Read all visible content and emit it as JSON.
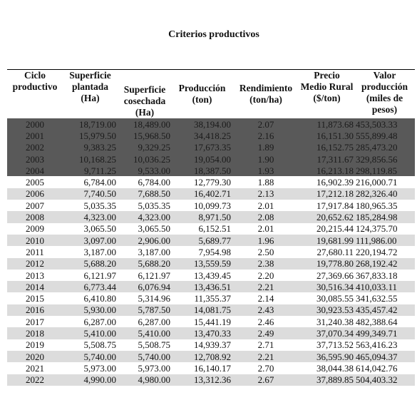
{
  "title": "Criterios productivos",
  "table": {
    "header": [
      "Ciclo productivo",
      "Superficie plantada (Ha)",
      "Superficie cosechada (Ha)",
      "Producción (ton)",
      "Rendimiento (ton/ha)",
      "Precio Medio Rural ($/ton)",
      "Valor producción (miles de pesos)"
    ],
    "rows": [
      [
        "2000",
        "18,719.00",
        "18,489.00",
        "38,194.00",
        "2.07",
        "11,873.68",
        "453,503.33"
      ],
      [
        "2001",
        "15,979.50",
        "15,968.50",
        "34,418.25",
        "2.16",
        "16,151.30",
        "555,899.48"
      ],
      [
        "2002",
        "9,383.25",
        "9,329.25",
        "17,673.35",
        "1.89",
        "16,152.75",
        "285,473.20"
      ],
      [
        "2003",
        "10,168.25",
        "10,036.25",
        "19,054.00",
        "1.90",
        "17,311.67",
        "329,856.56"
      ],
      [
        "2004",
        "9,711.25",
        "9,533.00",
        "18,387.50",
        "1.93",
        "16,213.18",
        "298,119.85"
      ],
      [
        "2005",
        "6,784.00",
        "6,784.00",
        "12,779.30",
        "1.88",
        "16,902.39",
        "216,000.71"
      ],
      [
        "2006",
        "7,740.50",
        "7,688.50",
        "16,402.71",
        "2.13",
        "17,212.18",
        "282,326.40"
      ],
      [
        "2007",
        "5,035.35",
        "5,035.35",
        "10,099.73",
        "2.01",
        "17,917.84",
        "180,965.35"
      ],
      [
        "2008",
        "4,323.00",
        "4,323.00",
        "8,971.50",
        "2.08",
        "20,652.62",
        "185,284.98"
      ],
      [
        "2009",
        "3,065.50",
        "3,065.50",
        "6,152.51",
        "2.01",
        "20,215.44",
        "124,375.70"
      ],
      [
        "2010",
        "3,097.00",
        "2,906.00",
        "5,689.77",
        "1.96",
        "19,681.99",
        "111,986.00"
      ],
      [
        "2011",
        "3,187.00",
        "3,187.00",
        "7,954.98",
        "2.50",
        "27,680.11",
        "220,194.72"
      ],
      [
        "2012",
        "5,688.20",
        "5,688.20",
        "13,559.59",
        "2.38",
        "19,778.80",
        "268,192.42"
      ],
      [
        "2013",
        "6,121.97",
        "6,121.97",
        "13,439.45",
        "2.20",
        "27,369.66",
        "367,833.18"
      ],
      [
        "2014",
        "6,773.44",
        "6,076.94",
        "13,436.51",
        "2.21",
        "30,516.34",
        "410,033.11"
      ],
      [
        "2015",
        "6,410.80",
        "5,314.96",
        "11,355.37",
        "2.14",
        "30,085.55",
        "341,632.55"
      ],
      [
        "2016",
        "5,930.00",
        "5,787.50",
        "14,081.75",
        "2.43",
        "30,923.53",
        "435,457.42"
      ],
      [
        "2017",
        "6,287.00",
        "6,287.00",
        "15,441.19",
        "2.46",
        "31,240.38",
        "482,388.64"
      ],
      [
        "2018",
        "5,410.00",
        "5,410.00",
        "13,470.33",
        "2.49",
        "37,070.34",
        "499,349.71"
      ],
      [
        "2019",
        "5,508.75",
        "5,508.75",
        "14,939.37",
        "2.71",
        "37,713.52",
        "563,416.23"
      ],
      [
        "2020",
        "5,740.00",
        "5,740.00",
        "12,708.92",
        "2.21",
        "36,595.90",
        "465,094.37"
      ],
      [
        "2021",
        "5,973.00",
        "5,973.00",
        "16,140.17",
        "2.70",
        "38,044.38",
        "614,042.76"
      ],
      [
        "2022",
        "4,990.00",
        "4,980.00",
        "13,312.36",
        "2.67",
        "37,889.85",
        "504,403.32"
      ]
    ]
  }
}
